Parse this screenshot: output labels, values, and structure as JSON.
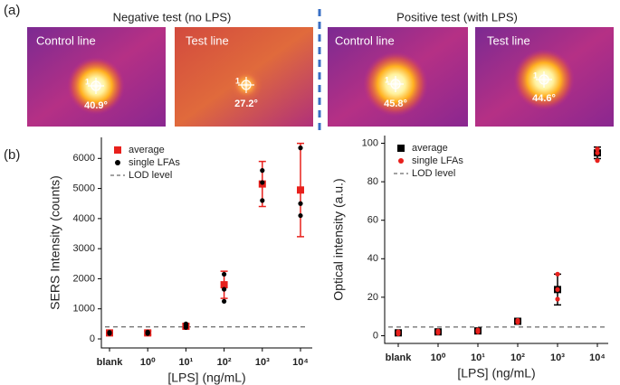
{
  "panel_a": {
    "label": "(a)",
    "groups": [
      {
        "title": "Negative test (no LPS)",
        "images": [
          {
            "label": "Control line",
            "marker": "1",
            "temp": "40.9°"
          },
          {
            "label": "Test line",
            "marker": "1",
            "temp": "27.2°"
          }
        ]
      },
      {
        "title": "Positive test (with LPS)",
        "images": [
          {
            "label": "Control line",
            "marker": "1",
            "temp": "45.8°"
          },
          {
            "label": "Test line",
            "marker": "1",
            "temp": "44.6°"
          }
        ]
      }
    ]
  },
  "panel_b_label": "(b)",
  "chart_data": [
    {
      "type": "scatter",
      "xlabel": "[LPS] (ng/mL)",
      "ylabel": "SERS Intensity (counts)",
      "categories": [
        "blank",
        "10⁰",
        "10¹",
        "10²",
        "10³",
        "10⁴"
      ],
      "ylim": [
        -300,
        6700
      ],
      "yticks": [
        0,
        1000,
        2000,
        3000,
        4000,
        5000,
        6000
      ],
      "legend": "top-left",
      "lod": 400,
      "lod_label": "LOD level",
      "series": [
        {
          "name": "average",
          "color": "#e8201c",
          "marker": "square",
          "values": [
            200,
            200,
            420,
            1800,
            5150,
            4950
          ],
          "errors": [
            60,
            60,
            80,
            450,
            750,
            1550
          ]
        },
        {
          "name": "single LFAs",
          "color": "#000000",
          "marker": "circle",
          "values": [
            [
              180,
              200,
              220
            ],
            [
              180,
              200,
              230
            ],
            [
              380,
              450,
              500
            ],
            [
              1250,
              1650,
              2150
            ],
            [
              4600,
              5200,
              5600
            ],
            [
              4100,
              4500,
              6350
            ]
          ]
        }
      ]
    },
    {
      "type": "scatter",
      "xlabel": "[LPS] (ng/mL)",
      "ylabel": "Optical intensity (a.u.)",
      "categories": [
        "blank",
        "10⁰",
        "10¹",
        "10²",
        "10³",
        "10⁴"
      ],
      "ylim": [
        -4,
        104
      ],
      "yticks": [
        0,
        20,
        40,
        60,
        80,
        100
      ],
      "legend": "top-left",
      "lod": 4.5,
      "lod_label": "LOD level",
      "series": [
        {
          "name": "average",
          "color": "#000000",
          "marker": "square",
          "values": [
            1.5,
            2,
            2.5,
            7.5,
            24,
            95
          ],
          "errors": [
            1,
            1,
            1,
            1,
            8,
            3
          ]
        },
        {
          "name": "single LFAs",
          "color": "#e8201c",
          "marker": "circle",
          "values": [
            [
              1,
              2,
              2
            ],
            [
              1.5,
              2,
              2.5
            ],
            [
              2,
              2.5,
              3
            ],
            [
              7,
              7.5,
              8
            ],
            [
              19,
              24,
              32
            ],
            [
              91,
              95,
              97
            ]
          ]
        }
      ]
    }
  ]
}
